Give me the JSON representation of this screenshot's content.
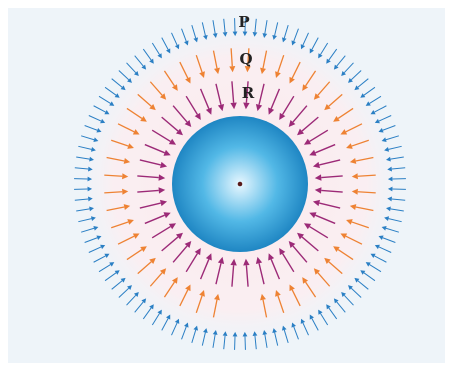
{
  "labels": {
    "p": "P",
    "q": "Q",
    "r": "R"
  },
  "colors": {
    "background": "#eef4f9",
    "glow": "#fbe6ea",
    "outer_arrows": "#2a7fc4",
    "middle_arrows": "#ee8233",
    "inner_arrows": "#9c2a77",
    "sphere_center": "#e8f7ff",
    "sphere_mid": "#52b8e6",
    "sphere_edge": "#1f86c3",
    "center_dot": "#5a1a1a"
  },
  "field_lines": {
    "direction": "inward",
    "rings": [
      {
        "name": "outer",
        "arrow_count": 96
      },
      {
        "name": "middle",
        "arrow_count": 48
      },
      {
        "name": "inner",
        "arrow_count": 40
      }
    ]
  }
}
